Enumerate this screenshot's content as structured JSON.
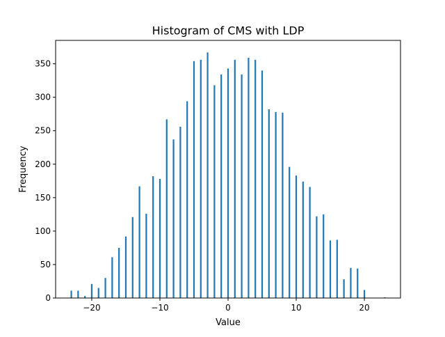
{
  "chart_data": {
    "type": "bar",
    "title": "Histogram of CMS with LDP",
    "xlabel": "Value",
    "ylabel": "Frequency",
    "xlim": [
      -25.3,
      25.3
    ],
    "ylim": [
      0,
      385
    ],
    "xticks": [
      -20,
      -10,
      0,
      10,
      20
    ],
    "xtick_labels": [
      "−20",
      "−10",
      "0",
      "10",
      "20"
    ],
    "yticks": [
      0,
      50,
      100,
      150,
      200,
      250,
      300,
      350
    ],
    "ytick_labels": [
      "0",
      "50",
      "100",
      "150",
      "200",
      "250",
      "300",
      "350"
    ],
    "grid": false,
    "bar_color": "#1f77b4",
    "bars": [
      {
        "x": -23,
        "value": 11
      },
      {
        "x": -22,
        "value": 11
      },
      {
        "x": -21,
        "value": 3
      },
      {
        "x": -20,
        "value": 21
      },
      {
        "x": -19,
        "value": 15
      },
      {
        "x": -18,
        "value": 30
      },
      {
        "x": -17,
        "value": 61
      },
      {
        "x": -16,
        "value": 75
      },
      {
        "x": -15,
        "value": 92
      },
      {
        "x": -14,
        "value": 121
      },
      {
        "x": -13,
        "value": 167
      },
      {
        "x": -12,
        "value": 126
      },
      {
        "x": -11,
        "value": 182
      },
      {
        "x": -10,
        "value": 178
      },
      {
        "x": -9,
        "value": 267
      },
      {
        "x": -8,
        "value": 237
      },
      {
        "x": -7,
        "value": 256
      },
      {
        "x": -6,
        "value": 294
      },
      {
        "x": -5,
        "value": 354
      },
      {
        "x": -4,
        "value": 356
      },
      {
        "x": -3,
        "value": 367
      },
      {
        "x": -2,
        "value": 318
      },
      {
        "x": -1,
        "value": 334
      },
      {
        "x": 0,
        "value": 343
      },
      {
        "x": 1,
        "value": 356
      },
      {
        "x": 2,
        "value": 334
      },
      {
        "x": 3,
        "value": 359
      },
      {
        "x": 4,
        "value": 356
      },
      {
        "x": 5,
        "value": 340
      },
      {
        "x": 6,
        "value": 282
      },
      {
        "x": 7,
        "value": 278
      },
      {
        "x": 8,
        "value": 277
      },
      {
        "x": 9,
        "value": 196
      },
      {
        "x": 10,
        "value": 183
      },
      {
        "x": 11,
        "value": 174
      },
      {
        "x": 12,
        "value": 166
      },
      {
        "x": 13,
        "value": 122
      },
      {
        "x": 14,
        "value": 125
      },
      {
        "x": 15,
        "value": 86
      },
      {
        "x": 16,
        "value": 87
      },
      {
        "x": 17,
        "value": 28
      },
      {
        "x": 18,
        "value": 45
      },
      {
        "x": 19,
        "value": 44
      },
      {
        "x": 20,
        "value": 12
      },
      {
        "x": 23,
        "value": 1
      }
    ]
  }
}
